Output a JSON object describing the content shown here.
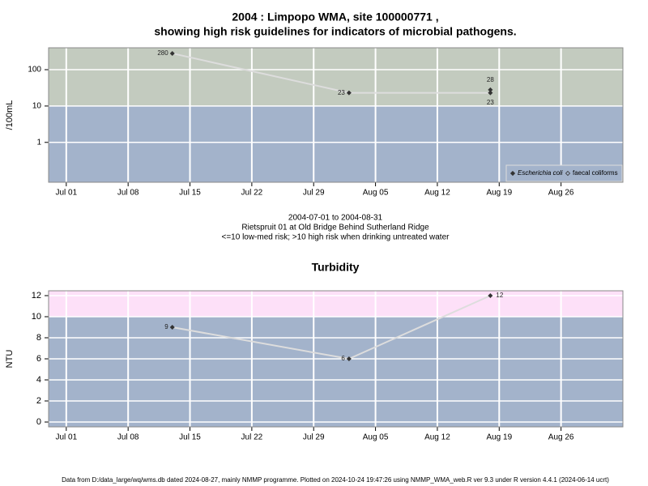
{
  "chart_data": [
    {
      "type": "line",
      "title": [
        "2004 : Limpopo WMA, site 100000771 ,",
        "showing high risk guidelines for indicators of microbial pathogens."
      ],
      "ylabel": "/100mL",
      "log_y": true,
      "x": [
        "2004-07-13",
        "2004-08-02",
        "2004-08-18"
      ],
      "series": [
        {
          "name": "Escherichia coli",
          "color": "#333333",
          "values": [
            280,
            23,
            23
          ]
        },
        {
          "name": "faecal coliforms",
          "color": "#333333",
          "values": [
            null,
            null,
            28
          ]
        }
      ],
      "xlim": [
        "2004-06-29",
        "2004-09-02"
      ],
      "xticks": [
        {
          "value": "2004-07-01",
          "label": "Jul 01"
        },
        {
          "value": "2004-07-08",
          "label": "Jul 08"
        },
        {
          "value": "2004-07-15",
          "label": "Jul 15"
        },
        {
          "value": "2004-07-22",
          "label": "Jul 22"
        },
        {
          "value": "2004-07-29",
          "label": "Jul 29"
        },
        {
          "value": "2004-08-05",
          "label": "Aug 05"
        },
        {
          "value": "2004-08-12",
          "label": "Aug 12"
        },
        {
          "value": "2004-08-19",
          "label": "Aug 19"
        },
        {
          "value": "2004-08-26",
          "label": "Aug 26"
        }
      ],
      "ylim": [
        0.08,
        400
      ],
      "yticks": [
        1,
        10,
        100
      ],
      "threshold": 10,
      "high_color": "#c3cbbf",
      "low_color": "#a3b3cb",
      "line_color": "#dddddd",
      "grid": true,
      "legend": "bottom right",
      "annotations": [
        "2004-07-01 to 2004-08-31",
        "Rietspruit 01 at Old Bridge Behind Sutherland Ridge",
        "<=10 low-med risk; >10 high risk when drinking untreated water"
      ]
    },
    {
      "type": "line",
      "title": [
        "Turbidity"
      ],
      "ylabel": "NTU",
      "log_y": false,
      "x": [
        "2004-07-13",
        "2004-08-02",
        "2004-08-18"
      ],
      "series": [
        {
          "color": "#333333",
          "values": [
            9,
            6,
            12
          ]
        }
      ],
      "xlim": [
        "2004-06-29",
        "2004-09-02"
      ],
      "xticks": [
        {
          "value": "2004-07-01",
          "label": "Jul 01"
        },
        {
          "value": "2004-07-08",
          "label": "Jul 08"
        },
        {
          "value": "2004-07-15",
          "label": "Jul 15"
        },
        {
          "value": "2004-07-22",
          "label": "Jul 22"
        },
        {
          "value": "2004-07-29",
          "label": "Jul 29"
        },
        {
          "value": "2004-08-05",
          "label": "Aug 05"
        },
        {
          "value": "2004-08-12",
          "label": "Aug 12"
        },
        {
          "value": "2004-08-19",
          "label": "Aug 19"
        },
        {
          "value": "2004-08-26",
          "label": "Aug 26"
        }
      ],
      "ylim": [
        -0.46,
        12.46
      ],
      "yticks": [
        0,
        2,
        4,
        6,
        8,
        10,
        12
      ],
      "threshold": 10,
      "high_color": "#fde0f8",
      "low_color": "#a3b3cb",
      "line_color": "#dddddd",
      "grid": true
    }
  ],
  "footer": "Data from D:/data_large/wq/wms.db dated 2024-08-27, mainly NMMP programme. Plotted on 2024-10-24 19:47:26 using NMMP_WMA_web.R ver 9.3 under R version 4.4.1 (2024-06-14 ucrt)"
}
